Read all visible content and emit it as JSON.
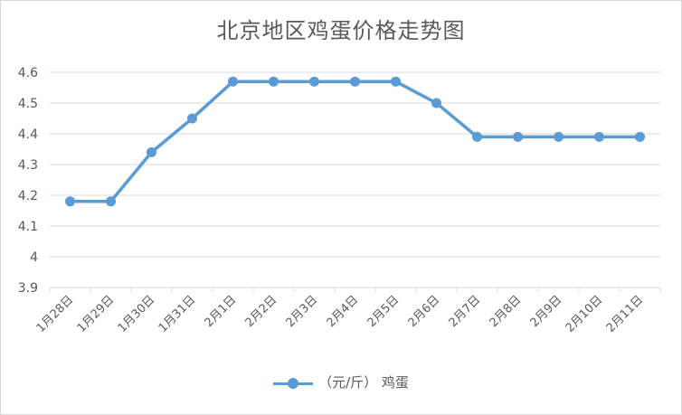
{
  "chart_data": {
    "type": "line",
    "title": "北京地区鸡蛋价格走势图",
    "categories": [
      "1月28日",
      "1月29日",
      "1月30日",
      "1月31日",
      "2月1日",
      "2月2日",
      "2月3日",
      "2月4日",
      "2月5日",
      "2月6日",
      "2月7日",
      "2月8日",
      "2月9日",
      "2月10日",
      "2月11日"
    ],
    "series": [
      {
        "name": "（元/斤） 鸡蛋",
        "values": [
          4.18,
          4.18,
          4.34,
          4.45,
          4.57,
          4.57,
          4.57,
          4.57,
          4.57,
          4.5,
          4.39,
          4.39,
          4.39,
          4.39,
          4.39
        ]
      }
    ],
    "ylim": [
      3.9,
      4.6
    ],
    "yticks": [
      "3.9",
      "4",
      "4.1",
      "4.2",
      "4.3",
      "4.4",
      "4.5",
      "4.6"
    ],
    "grid": true,
    "legend_position": "bottom",
    "colors": {
      "series": "#5b9bd5",
      "grid": "#d9d9d9",
      "text": "#595959"
    }
  }
}
